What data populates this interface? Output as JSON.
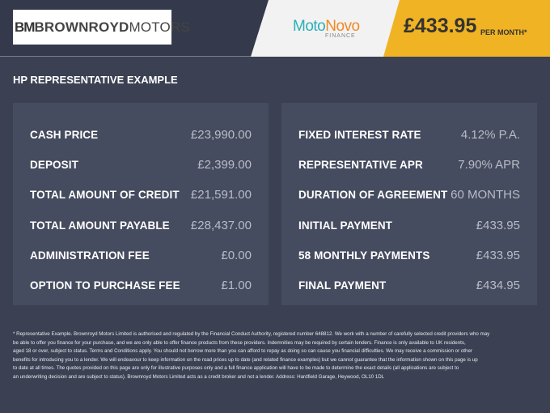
{
  "header": {
    "logo_mark": "BM",
    "logo_brand_bold": "BROWNROYD",
    "logo_brand_light": "MOTORS",
    "lender_a": "Moto",
    "lender_b": "Novo",
    "lender_sub": "FINANCE",
    "price": "£433.95",
    "per_month": "PER MONTH*",
    "colors": {
      "accent": "#f0b323",
      "header": "#343a4c"
    }
  },
  "title": "HP REPRESENTATIVE EXAMPLE",
  "left": [
    {
      "label": "CASH PRICE",
      "value": "£23,990.00"
    },
    {
      "label": "DEPOSIT",
      "value": "£2,399.00"
    },
    {
      "label": "TOTAL AMOUNT OF CREDIT",
      "value": "£21,591.00"
    },
    {
      "label": "TOTAL AMOUNT PAYABLE",
      "value": "£28,437.00"
    },
    {
      "label": "ADMINISTRATION FEE",
      "value": "£0.00"
    },
    {
      "label": "OPTION TO PURCHASE FEE",
      "value": "£1.00"
    }
  ],
  "right": [
    {
      "label": "FIXED INTEREST RATE",
      "value": "4.12% P.A."
    },
    {
      "label": "REPRESENTATIVE APR",
      "value": "7.90% APR"
    },
    {
      "label": "DURATION OF AGREEMENT",
      "value": "60 MONTHS"
    },
    {
      "label": "INITIAL PAYMENT",
      "value": "£433.95"
    },
    {
      "label": "58 MONTHLY PAYMENTS",
      "value": "£433.95"
    },
    {
      "label": "FINAL PAYMENT",
      "value": "£434.95"
    }
  ],
  "disclaimer": [
    "* Representative Example. Brownroyd Motors Limited is authorised and regulated by the Financial Conduct Authority, registered number 648812. We work with a number of carefully selected credit providers who may",
    "be able to offer you finance for your purchase, and we are only able to offer finance products from these providers. Indemnities may be required by certain lenders. Finance is only available to UK residents,",
    "aged 18 or over, subject to status. Terms and Conditions apply. You should not borrow more than you can afford to repay as doing so can cause you financial difficulties. We may receive a commission or other",
    "benefits for introducing you to a lender. We will endeavour to keep information on the road prices up to date (and related finance examples) but we cannot guarantee that the information shown on this page is up",
    "to date at all times. The quotes provided on this page are only for illustrative purposes only and a full finance application will have to be made to determine the exact details (all applications are subject to",
    "an underwriting decision and are subject to status). Brownroyd Motors Limited acts as a credit broker and not a lender. Address: Hardfield Garage, Heywood, OL10 1DL"
  ]
}
